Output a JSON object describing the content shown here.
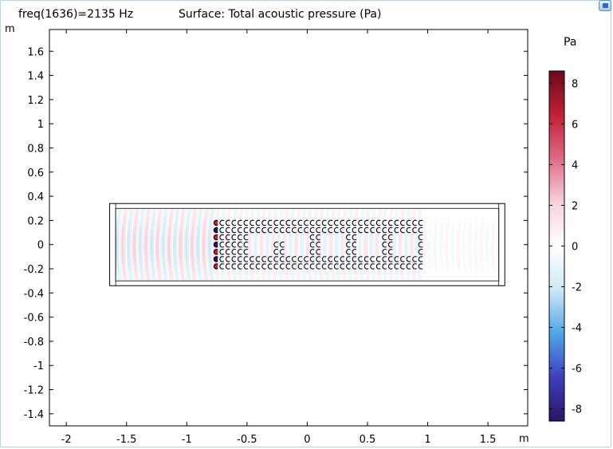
{
  "header": {
    "freq_label": "freq(1636)=2135 Hz",
    "surface_label": "Surface: Total acoustic pressure (Pa)"
  },
  "chart_data": {
    "type": "heatmap",
    "title": "Surface: Total acoustic pressure (Pa)",
    "subtitle": "freq(1636)=2135 Hz",
    "xlabel": "m",
    "ylabel": "m",
    "xlim": [
      -2.14,
      1.83
    ],
    "ylim": [
      -1.5,
      1.78
    ],
    "x_ticks": [
      -2,
      -1.5,
      -1,
      -0.5,
      0,
      0.5,
      1,
      1.5
    ],
    "x_tick_labels": [
      "-2",
      "-1.5",
      "-1",
      "-0.5",
      "0",
      "0.5",
      "1",
      "1.5"
    ],
    "y_ticks": [
      1.6,
      1.4,
      1.2,
      1,
      0.8,
      0.6,
      0.4,
      0.2,
      0,
      -0.2,
      -0.4,
      -0.6,
      -0.8,
      -1,
      -1.2,
      -1.4
    ],
    "y_tick_labels": [
      "1.6",
      "1.4",
      "1.2",
      "1",
      "0.8",
      "0.6",
      "0.4",
      "0.2",
      "0",
      "-0.2",
      "-0.4",
      "-0.6",
      "-0.8",
      "-1",
      "-1.2",
      "-1.4"
    ],
    "grid": false,
    "domain": {
      "duct_x": [
        -1.64,
        1.64
      ],
      "duct_y": [
        -0.34,
        0.34
      ],
      "inner_x": [
        -1.59,
        1.59
      ],
      "inner_y": [
        -0.3,
        0.3
      ]
    },
    "scatterer_columns_x": [
      -0.755,
      -0.705,
      -0.655,
      -0.605,
      -0.555,
      -0.505,
      -0.455,
      -0.405,
      -0.355,
      -0.305,
      -0.255,
      -0.205,
      -0.155,
      -0.105,
      -0.055,
      -0.005,
      0.045,
      0.095,
      0.145,
      0.195,
      0.245,
      0.295,
      0.345,
      0.395,
      0.445,
      0.495,
      0.545,
      0.595,
      0.645,
      0.695,
      0.745,
      0.795,
      0.845,
      0.895,
      0.945
    ],
    "scatterer_rows_y": [
      0.18,
      0.12,
      0.06,
      0.0,
      -0.06,
      -0.12,
      -0.18
    ],
    "pressure_range": [
      -8.6,
      8.6
    ],
    "colorbar": {
      "unit": "Pa",
      "ticks": [
        8,
        6,
        4,
        2,
        0,
        -2,
        -4,
        -6,
        -8
      ],
      "tick_labels": [
        "8",
        "6",
        "4",
        "2",
        "0",
        "-2",
        "-4",
        "-6",
        "-8"
      ],
      "range": [
        -8.6,
        8.6
      ],
      "colors": [
        "#2b1466",
        "#3f3fbf",
        "#4da6e8",
        "#cfe8f6",
        "#ffffff",
        "#f6d2dc",
        "#e06a86",
        "#c02035",
        "#6b0a1a"
      ]
    }
  }
}
